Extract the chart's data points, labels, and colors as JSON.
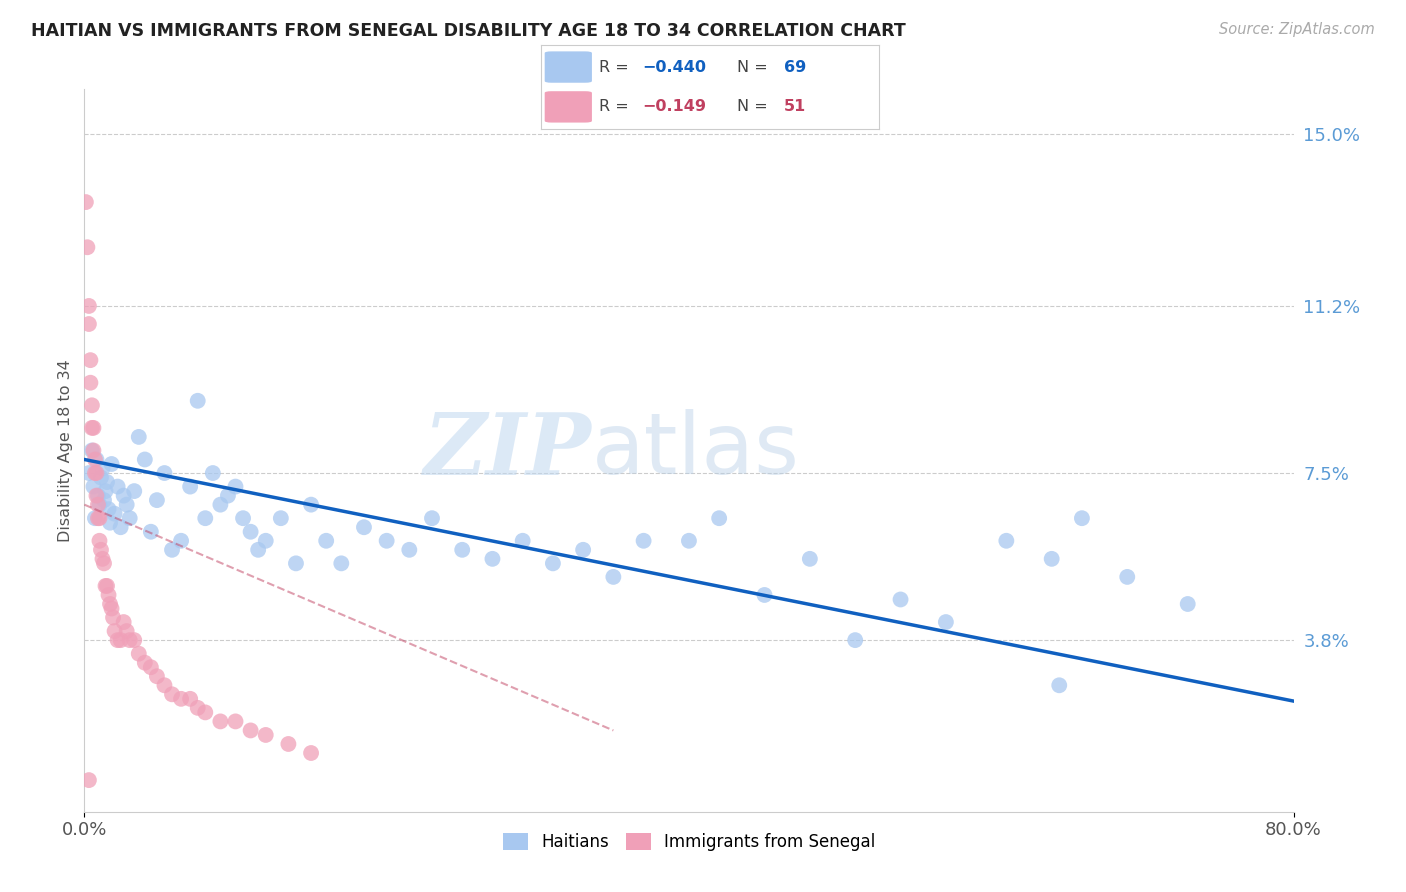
{
  "title": "HAITIAN VS IMMIGRANTS FROM SENEGAL DISABILITY AGE 18 TO 34 CORRELATION CHART",
  "source": "Source: ZipAtlas.com",
  "ylabel": "Disability Age 18 to 34",
  "xlim": [
    0.0,
    0.8
  ],
  "ylim": [
    0.0,
    0.16
  ],
  "ytick_labels_right": [
    "3.8%",
    "7.5%",
    "11.2%",
    "15.0%"
  ],
  "ytick_vals_right": [
    0.038,
    0.075,
    0.112,
    0.15
  ],
  "hline_vals": [
    0.038,
    0.075,
    0.112,
    0.15
  ],
  "watermark_zip": "ZIP",
  "watermark_atlas": "atlas",
  "blue_color": "#a8c8f0",
  "blue_line_color": "#1060c0",
  "pink_color": "#f0a0b8",
  "pink_line_color": "#c04060",
  "blue_r": -0.44,
  "blue_n": 69,
  "pink_r": -0.149,
  "pink_n": 51,
  "blue_label": "Haitians",
  "pink_label": "Immigrants from Senegal",
  "background_color": "#ffffff",
  "grid_color": "#cccccc",
  "blue_scatter_x": [
    0.003,
    0.005,
    0.006,
    0.007,
    0.008,
    0.009,
    0.01,
    0.011,
    0.012,
    0.013,
    0.014,
    0.015,
    0.016,
    0.017,
    0.018,
    0.02,
    0.022,
    0.024,
    0.026,
    0.028,
    0.03,
    0.033,
    0.036,
    0.04,
    0.044,
    0.048,
    0.053,
    0.058,
    0.064,
    0.07,
    0.075,
    0.08,
    0.085,
    0.09,
    0.095,
    0.1,
    0.105,
    0.11,
    0.115,
    0.12,
    0.13,
    0.14,
    0.15,
    0.16,
    0.17,
    0.185,
    0.2,
    0.215,
    0.23,
    0.25,
    0.27,
    0.29,
    0.31,
    0.33,
    0.35,
    0.37,
    0.4,
    0.42,
    0.45,
    0.48,
    0.51,
    0.54,
    0.57,
    0.61,
    0.64,
    0.66,
    0.69,
    0.73,
    0.645
  ],
  "blue_scatter_y": [
    0.075,
    0.08,
    0.072,
    0.065,
    0.078,
    0.07,
    0.068,
    0.074,
    0.076,
    0.069,
    0.071,
    0.073,
    0.067,
    0.064,
    0.077,
    0.066,
    0.072,
    0.063,
    0.07,
    0.068,
    0.065,
    0.071,
    0.083,
    0.078,
    0.062,
    0.069,
    0.075,
    0.058,
    0.06,
    0.072,
    0.091,
    0.065,
    0.075,
    0.068,
    0.07,
    0.072,
    0.065,
    0.062,
    0.058,
    0.06,
    0.065,
    0.055,
    0.068,
    0.06,
    0.055,
    0.063,
    0.06,
    0.058,
    0.065,
    0.058,
    0.056,
    0.06,
    0.055,
    0.058,
    0.052,
    0.06,
    0.06,
    0.065,
    0.048,
    0.056,
    0.038,
    0.047,
    0.042,
    0.06,
    0.056,
    0.065,
    0.052,
    0.046,
    0.028
  ],
  "pink_scatter_x": [
    0.001,
    0.002,
    0.003,
    0.003,
    0.004,
    0.004,
    0.005,
    0.005,
    0.006,
    0.006,
    0.007,
    0.007,
    0.008,
    0.008,
    0.009,
    0.009,
    0.01,
    0.01,
    0.011,
    0.012,
    0.013,
    0.014,
    0.015,
    0.016,
    0.017,
    0.018,
    0.019,
    0.02,
    0.022,
    0.024,
    0.026,
    0.028,
    0.03,
    0.033,
    0.036,
    0.04,
    0.044,
    0.048,
    0.053,
    0.058,
    0.064,
    0.07,
    0.075,
    0.08,
    0.09,
    0.1,
    0.11,
    0.12,
    0.135,
    0.15,
    0.003
  ],
  "pink_scatter_y": [
    0.135,
    0.125,
    0.112,
    0.108,
    0.1,
    0.095,
    0.09,
    0.085,
    0.085,
    0.08,
    0.078,
    0.075,
    0.075,
    0.07,
    0.068,
    0.065,
    0.065,
    0.06,
    0.058,
    0.056,
    0.055,
    0.05,
    0.05,
    0.048,
    0.046,
    0.045,
    0.043,
    0.04,
    0.038,
    0.038,
    0.042,
    0.04,
    0.038,
    0.038,
    0.035,
    0.033,
    0.032,
    0.03,
    0.028,
    0.026,
    0.025,
    0.025,
    0.023,
    0.022,
    0.02,
    0.02,
    0.018,
    0.017,
    0.015,
    0.013,
    0.007
  ]
}
